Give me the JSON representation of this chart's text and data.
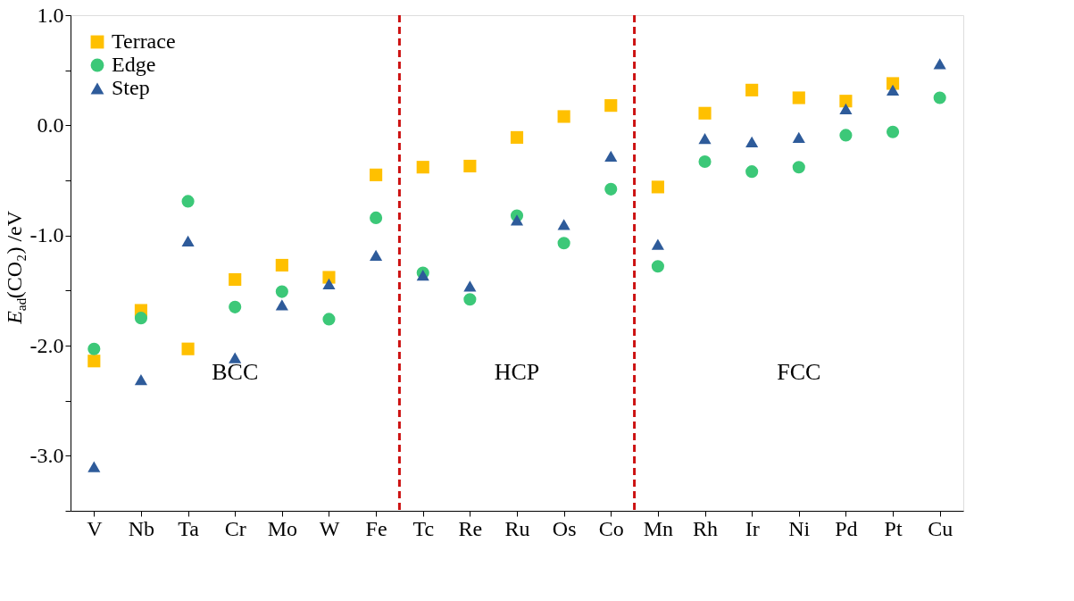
{
  "chart_data": {
    "type": "scatter",
    "ylabel": "E$_{ad}$(CO₂) /eV",
    "categories": [
      "V",
      "Nb",
      "Ta",
      "Cr",
      "Mo",
      "W",
      "Fe",
      "Tc",
      "Re",
      "Ru",
      "Os",
      "Co",
      "Mn",
      "Rh",
      "Ir",
      "Ni",
      "Pd",
      "Pt",
      "Cu"
    ],
    "series": [
      {
        "name": "Terrace",
        "color": "#ffc000",
        "marker": "square",
        "values": [
          -2.14,
          -1.68,
          -2.03,
          -1.4,
          -1.27,
          -1.38,
          -0.45,
          -0.38,
          -0.37,
          -0.11,
          0.08,
          0.18,
          -0.56,
          0.11,
          0.32,
          0.25,
          0.22,
          0.38,
          null
        ]
      },
      {
        "name": "Edge",
        "color": "#3cc878",
        "marker": "circle",
        "values": [
          -2.03,
          -1.75,
          -0.69,
          -1.65,
          -1.51,
          -1.76,
          -0.84,
          -1.34,
          -1.58,
          -0.82,
          -1.07,
          -0.58,
          -1.28,
          -0.33,
          -0.42,
          -0.38,
          -0.09,
          -0.06,
          0.25
        ]
      },
      {
        "name": "Step",
        "color": "#2e5b9a",
        "marker": "triangle",
        "values": [
          -3.1,
          -2.31,
          -1.05,
          -2.11,
          -1.63,
          -1.44,
          -1.18,
          -1.36,
          -1.46,
          -0.86,
          -0.9,
          -0.28,
          -1.08,
          -0.12,
          -0.15,
          -0.11,
          0.15,
          0.32,
          0.56
        ]
      }
    ],
    "ylim": [
      -3.5,
      1.0
    ],
    "yticks": [
      {
        "value": -3.5,
        "label": null
      },
      {
        "value": -3,
        "label": "-3.0"
      },
      {
        "value": -2.5,
        "label": null
      },
      {
        "value": -2,
        "label": "-2.0"
      },
      {
        "value": -1.5,
        "label": null
      },
      {
        "value": -1,
        "label": "-1.0"
      },
      {
        "value": -0.5,
        "label": null
      },
      {
        "value": 0,
        "label": "0.0"
      },
      {
        "value": 0.5,
        "label": null
      },
      {
        "value": 1,
        "label": "1.0"
      }
    ],
    "annotations": [
      "BCC",
      "HCP",
      "FCC"
    ],
    "grid": false,
    "legend": "top left"
  }
}
